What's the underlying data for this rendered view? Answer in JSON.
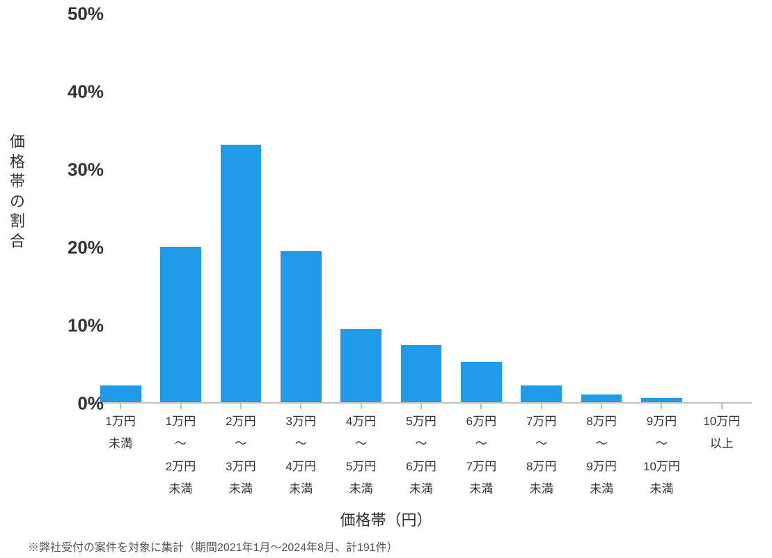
{
  "chart": {
    "type": "bar",
    "y_axis_title": "価格帯の割合",
    "x_axis_title": "価格帯（円）",
    "footnote": "※弊社受付の案件を対象に集計（期間2021年1月～2024年8月、計191件）",
    "bar_color": "#1f9be9",
    "axis_line_color": "#bfbfbf",
    "text_color": "#333333",
    "background_color": "#ffffff",
    "ylim": [
      0,
      50
    ],
    "ytick_step": 10,
    "ytick_suffix": "%",
    "y_label_fontsize": 26,
    "y_label_fontweight": "bold",
    "x_label_fontsize": 17,
    "axis_title_fontsize": 22,
    "footnote_fontsize": 16,
    "bar_width_ratio": 0.68,
    "categories": [
      "1万円\n未満",
      "1万円\n〜\n2万円\n未満",
      "2万円\n〜\n3万円\n未満",
      "3万円\n〜\n4万円\n未満",
      "4万円\n〜\n5万円\n未満",
      "5万円\n〜\n6万円\n未満",
      "6万円\n〜\n7万円\n未満",
      "7万円\n〜\n8万円\n未満",
      "8万円\n〜\n9万円\n未満",
      "9万円\n〜\n10万円\n未満",
      "10万円\n以上"
    ],
    "values": [
      2.1,
      19.9,
      33.0,
      19.4,
      9.4,
      7.3,
      5.2,
      2.1,
      1.0,
      0.5,
      0.0
    ],
    "yticks": [
      0,
      10,
      20,
      30,
      40,
      50
    ]
  }
}
